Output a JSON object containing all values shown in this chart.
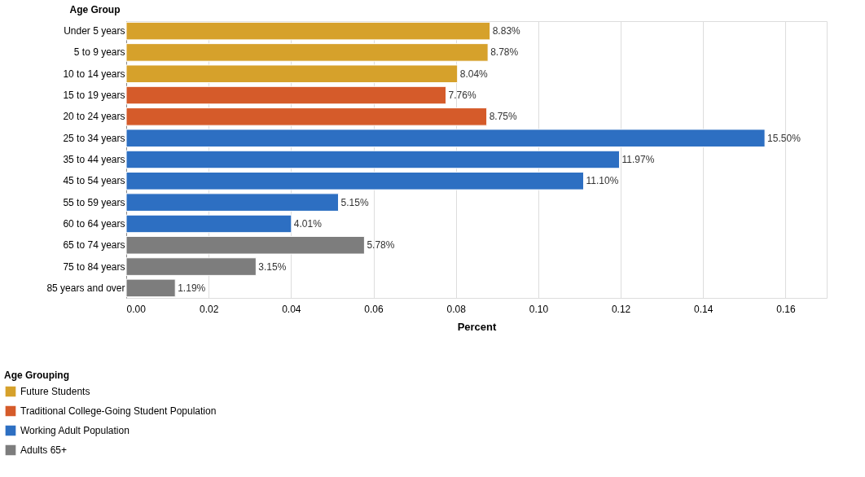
{
  "chart_data": {
    "type": "bar",
    "orientation": "horizontal",
    "xlabel": "Percent",
    "ylabel": "Age Group",
    "legend_title": "Age Grouping",
    "legend": "bottom left",
    "grid": "x",
    "categories": [
      "Under 5 years",
      "5 to 9 years",
      "10 to 14 years",
      "15 to 19 years",
      "20 to 24 years",
      "25 to 34 years",
      "35 to 44 years",
      "45 to 54 years",
      "55 to 59 years",
      "60 to 64 years",
      "65 to 74 years",
      "75 to 84 years",
      "85 years and over"
    ],
    "series": [
      {
        "name": "Future Students",
        "color": "#d6a12b",
        "values": [
          0.0883,
          0.0878,
          0.0804,
          null,
          null,
          null,
          null,
          null,
          null,
          null,
          null,
          null,
          null
        ],
        "value_labels": [
          "8.83%",
          "8.78%",
          "8.04%",
          null,
          null,
          null,
          null,
          null,
          null,
          null,
          null,
          null,
          null
        ]
      },
      {
        "name": "Traditional College-Going Student Population",
        "color": "#d55b2a",
        "values": [
          null,
          null,
          null,
          0.0776,
          0.0875,
          null,
          null,
          null,
          null,
          null,
          null,
          null,
          null
        ],
        "value_labels": [
          null,
          null,
          null,
          "7.76%",
          "8.75%",
          null,
          null,
          null,
          null,
          null,
          null,
          null,
          null
        ]
      },
      {
        "name": "Working Adult Population",
        "color": "#2d6fc2",
        "values": [
          null,
          null,
          null,
          null,
          null,
          0.155,
          0.1197,
          0.111,
          0.0515,
          0.0401,
          null,
          null,
          null
        ],
        "value_labels": [
          null,
          null,
          null,
          null,
          null,
          "15.50%",
          "11.97%",
          "11.10%",
          "5.15%",
          "4.01%",
          null,
          null,
          null
        ]
      },
      {
        "name": "Adults 65+",
        "color": "#7d7d7d",
        "values": [
          null,
          null,
          null,
          null,
          null,
          null,
          null,
          null,
          null,
          null,
          0.0578,
          0.0315,
          0.0119
        ],
        "value_labels": [
          null,
          null,
          null,
          null,
          null,
          null,
          null,
          null,
          null,
          null,
          "5.78%",
          "3.15%",
          "1.19%"
        ]
      }
    ],
    "xlim": [
      0,
      0.17
    ],
    "xticks": [
      {
        "value": 0,
        "label": "0.00"
      },
      {
        "value": 0.02,
        "label": "0.02"
      },
      {
        "value": 0.04,
        "label": "0.04"
      },
      {
        "value": 0.06,
        "label": "0.06"
      },
      {
        "value": 0.08,
        "label": "0.08"
      },
      {
        "value": 0.1,
        "label": "0.10"
      },
      {
        "value": 0.12,
        "label": "0.12"
      },
      {
        "value": 0.14,
        "label": "0.14"
      },
      {
        "value": 0.16,
        "label": "0.16"
      }
    ]
  }
}
